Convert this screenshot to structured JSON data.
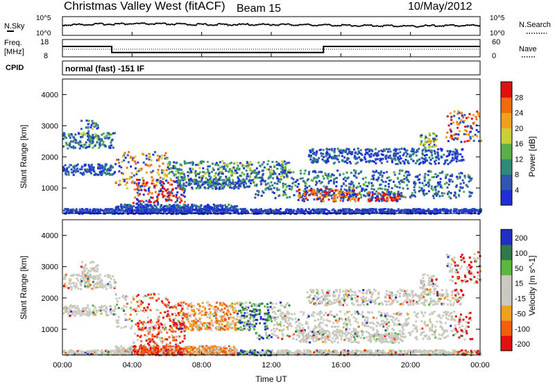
{
  "header": {
    "title": "Christmas Valley West (fitACF)",
    "beam": "Beam 15",
    "date": "10/May/2012"
  },
  "noise_panel": {
    "left_label": "N.Sky",
    "right_label": "N.Search",
    "left_ticks": [
      "10^5",
      "10^0"
    ],
    "right_ticks": [
      "10^5",
      "10^0"
    ]
  },
  "freq_panel": {
    "left_label_1": "Freq.",
    "left_label_2": "[MHz]",
    "right_label": "Nave",
    "left_ticks": [
      "18",
      "8"
    ],
    "right_ticks": [
      "60",
      "0"
    ]
  },
  "cpid": {
    "label": "CPID",
    "text": "normal (fast) -151 IF"
  },
  "time_axis": {
    "label": "Time UT",
    "ticks": [
      "00:00",
      "04:00",
      "08:00",
      "12:00",
      "16:00",
      "20:00",
      "00:00"
    ]
  },
  "colors": {
    "power_scale": [
      "#1f2fd6",
      "#2f57b0",
      "#2f8a7a",
      "#59b04a",
      "#c9cf3a",
      "#f0a020",
      "#f06a10",
      "#e01010"
    ],
    "velocity_scale": [
      "#2030c0",
      "#2f7a4a",
      "#5ab83a",
      "#c9c9bf",
      "#c9c9bf",
      "#f0a020",
      "#f06010",
      "#e01010"
    ]
  },
  "chart_data": [
    {
      "type": "line",
      "title": "N.Sky / N.Search",
      "x": [
        "00:00",
        "04:00",
        "08:00",
        "12:00",
        "16:00",
        "20:00",
        "00:00"
      ],
      "series": [
        {
          "name": "N.Sky",
          "values": [
            1000,
            3000,
            1500,
            1500,
            800,
            400,
            800
          ]
        },
        {
          "name": "N.Search",
          "values": [
            1000,
            3000,
            1500,
            1500,
            800,
            400,
            800
          ]
        }
      ],
      "ylim": [
        1,
        100000
      ]
    },
    {
      "type": "line",
      "title": "Freq. [MHz] / Nave",
      "series": [
        {
          "name": "Freq.",
          "x": [
            "00:00",
            "02:50",
            "02:50",
            "15:00",
            "15:00",
            "24:00"
          ],
          "values": [
            14,
            14,
            10.5,
            10.5,
            14,
            14
          ]
        },
        {
          "name": "Nave",
          "values": [
            15,
            15,
            15,
            15,
            15,
            15
          ]
        }
      ],
      "ylim": [
        8,
        18
      ]
    },
    {
      "type": "heatmap",
      "xlabel": "Time UT",
      "ylabel": "Slant Range [km]",
      "colorbar_label": "Power [dB]",
      "colorbar_ticks": [
        "4",
        "8",
        "12",
        "16",
        "20",
        "24",
        "28"
      ],
      "yticks": [
        "1000",
        "2000",
        "3000",
        "4000"
      ],
      "ylim": [
        180,
        4500
      ],
      "xlim": [
        "00:00",
        "24:00"
      ]
    },
    {
      "type": "heatmap",
      "xlabel": "Time UT",
      "ylabel": "Slant Range [km]",
      "colorbar_label": "Velocity [m s^-1]",
      "colorbar_ticks": [
        "200",
        "100",
        "50",
        "15",
        "-15",
        "-50",
        "-100",
        "-200"
      ],
      "yticks": [
        "1000",
        "2000",
        "3000",
        "4000"
      ],
      "ylim": [
        180,
        4500
      ],
      "xlim": [
        "00:00",
        "24:00"
      ]
    }
  ]
}
